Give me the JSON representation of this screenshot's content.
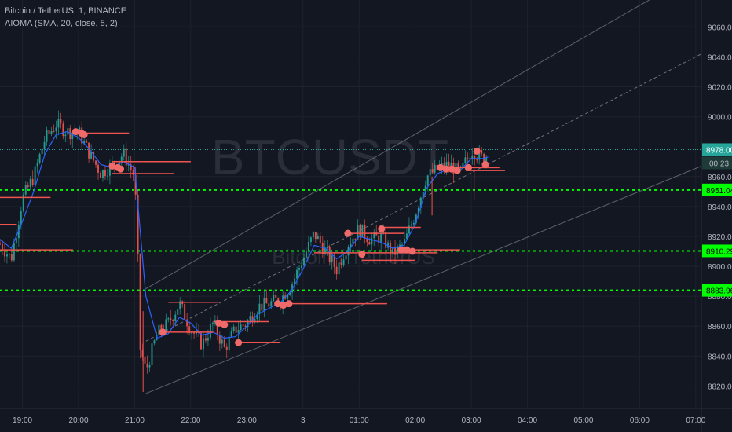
{
  "header": {
    "symbol_line": "Bitcoin / TetherUS, 1, BINANCE",
    "indicator_line": "AIOMA (SMA, 20, close, 5, 2)"
  },
  "watermark": {
    "ticker": "BTCUSDT",
    "name": "Bitcoin / TetherUS"
  },
  "colors": {
    "background": "#131722",
    "grid": "#1e222d",
    "axis_text": "#b2b5be",
    "candle_up": "#26a69a",
    "candle_down": "#ef5350",
    "ma_line": "#2962ff",
    "level_line": "#00ff00",
    "last_price": "#26a69a",
    "marker": "#f06a6a",
    "channel": "#787b86"
  },
  "chart_data": {
    "type": "line",
    "title": "Bitcoin / TetherUS, 1, BINANCE",
    "x_ticks": [
      "19:00",
      "20:00",
      "21:00",
      "22:00",
      "23:00",
      "3",
      "01:00",
      "02:00",
      "03:00",
      "04:00",
      "05:00",
      "06:00",
      "07:00"
    ],
    "y_ticks": [
      8820,
      8840,
      8860,
      8880,
      8900,
      8920,
      8940,
      8960,
      9000,
      9020,
      9040,
      9060
    ],
    "y_tick_labels": [
      "8820.00",
      "8840.00",
      "8860.00",
      "8880.00",
      "8900.00",
      "8920.00",
      "8940.00",
      "8960.00",
      "9000.00",
      "9020.00",
      "9040.00",
      "9060.00"
    ],
    "ylim": [
      8805,
      9078
    ],
    "xlim_hours": [
      18.6,
      31.1
    ],
    "series": [
      {
        "kind": "price-path",
        "x_hours": [
          18.6,
          18.8,
          19.0,
          19.2,
          19.4,
          19.6,
          19.8,
          20.0,
          20.2,
          20.4,
          20.6,
          20.8,
          21.0,
          21.05,
          21.1,
          21.2,
          21.4,
          21.6,
          21.8,
          22.0,
          22.2,
          22.4,
          22.6,
          22.8,
          23.0,
          23.2,
          23.4,
          23.6,
          23.8,
          24.0,
          24.2,
          24.4,
          24.6,
          24.8,
          25.0,
          25.2,
          25.4,
          25.6,
          25.8,
          26.0,
          26.2,
          26.4,
          26.6,
          26.8,
          27.0,
          27.2,
          27.3
        ],
        "y": [
          8915,
          8905,
          8945,
          8960,
          8985,
          8995,
          8990,
          8990,
          8975,
          8962,
          8968,
          8975,
          8960,
          8915,
          8845,
          8830,
          8855,
          8862,
          8875,
          8858,
          8848,
          8862,
          8845,
          8858,
          8862,
          8873,
          8875,
          8878,
          8888,
          8905,
          8922,
          8910,
          8898,
          8915,
          8925,
          8918,
          8920,
          8908,
          8915,
          8935,
          8960,
          8965,
          8968,
          8962,
          8978,
          8972,
          8975
        ]
      },
      {
        "kind": "moving-average",
        "x_hours": [
          18.6,
          18.8,
          19.0,
          19.2,
          19.4,
          19.6,
          19.8,
          20.0,
          20.2,
          20.4,
          20.6,
          20.8,
          21.0,
          21.2,
          21.4,
          21.6,
          21.8,
          22.0,
          22.2,
          22.4,
          22.6,
          22.8,
          23.0,
          23.2,
          23.4,
          23.6,
          23.8,
          24.0,
          24.2,
          24.4,
          24.6,
          24.8,
          25.0,
          25.2,
          25.4,
          25.6,
          25.8,
          26.0,
          26.2,
          26.4,
          26.6,
          26.8,
          27.0,
          27.2,
          27.3
        ],
        "y": [
          8918,
          8912,
          8930,
          8950,
          8975,
          8988,
          8990,
          8986,
          8978,
          8968,
          8966,
          8970,
          8966,
          8880,
          8852,
          8855,
          8866,
          8862,
          8854,
          8856,
          8852,
          8853,
          8860,
          8868,
          8872,
          8876,
          8884,
          8898,
          8914,
          8912,
          8905,
          8910,
          8920,
          8918,
          8916,
          8912,
          8914,
          8928,
          8952,
          8962,
          8965,
          8964,
          8972,
          8972,
          8973
        ]
      }
    ],
    "horizontal_levels": [
      {
        "value": 8951.04,
        "label": "8951.04"
      },
      {
        "value": 8910.29,
        "label": "8910.29"
      },
      {
        "value": 8883.96,
        "label": "8883.96"
      }
    ],
    "last_price": {
      "value": 8978.0,
      "label": "8978.00",
      "countdown": "00:23"
    },
    "channel": {
      "start_hour": 21.2,
      "end_hour": 31.1,
      "lower": [
        8815,
        8967
      ],
      "mid": [
        8850,
        9042
      ],
      "upper": [
        8885,
        9098
      ]
    },
    "markers": [
      {
        "x": 19.95,
        "y": 8990
      },
      {
        "x": 20.05,
        "y": 8989
      },
      {
        "x": 20.1,
        "y": 8988
      },
      {
        "x": 20.6,
        "y": 8967
      },
      {
        "x": 20.7,
        "y": 8966
      },
      {
        "x": 20.75,
        "y": 8965
      },
      {
        "x": 21.5,
        "y": 8856
      },
      {
        "x": 22.5,
        "y": 8862
      },
      {
        "x": 22.6,
        "y": 8861
      },
      {
        "x": 22.85,
        "y": 8849
      },
      {
        "x": 23.55,
        "y": 8875
      },
      {
        "x": 23.65,
        "y": 8874
      },
      {
        "x": 23.75,
        "y": 8875
      },
      {
        "x": 24.8,
        "y": 8922
      },
      {
        "x": 25.4,
        "y": 8925
      },
      {
        "x": 25.05,
        "y": 8908
      },
      {
        "x": 25.75,
        "y": 8911
      },
      {
        "x": 25.85,
        "y": 8911
      },
      {
        "x": 25.95,
        "y": 8910
      },
      {
        "x": 26.45,
        "y": 8966
      },
      {
        "x": 26.55,
        "y": 8965
      },
      {
        "x": 26.65,
        "y": 8965
      },
      {
        "x": 26.75,
        "y": 8964
      },
      {
        "x": 26.95,
        "y": 8966
      },
      {
        "x": 27.1,
        "y": 8977
      },
      {
        "x": 27.25,
        "y": 8968
      }
    ],
    "order_lines": [
      {
        "x1": 19.95,
        "x2": 20.9,
        "y": 8989
      },
      {
        "x1": 20.6,
        "x2": 22.0,
        "y": 8970
      },
      {
        "x1": 20.6,
        "x2": 21.7,
        "y": 8962
      },
      {
        "x1": 18.6,
        "x2": 19.5,
        "y": 8946
      },
      {
        "x1": 18.6,
        "x2": 18.9,
        "y": 8928
      },
      {
        "x1": 21.5,
        "x2": 22.4,
        "y": 8856
      },
      {
        "x1": 22.4,
        "x2": 23.4,
        "y": 8863
      },
      {
        "x1": 22.85,
        "x2": 23.6,
        "y": 8849
      },
      {
        "x1": 21.6,
        "x2": 22.5,
        "y": 8876
      },
      {
        "x1": 23.55,
        "x2": 25.5,
        "y": 8875
      },
      {
        "x1": 24.8,
        "x2": 25.8,
        "y": 8922
      },
      {
        "x1": 25.4,
        "x2": 26.1,
        "y": 8926
      },
      {
        "x1": 24.2,
        "x2": 26.4,
        "y": 8909
      },
      {
        "x1": 25.05,
        "x2": 26.0,
        "y": 8904
      },
      {
        "x1": 25.9,
        "x2": 26.8,
        "y": 8911
      },
      {
        "x1": 26.45,
        "x2": 27.5,
        "y": 8966
      },
      {
        "x1": 26.9,
        "x2": 27.6,
        "y": 8964
      },
      {
        "x1": 18.6,
        "x2": 19.9,
        "y": 8911
      }
    ]
  }
}
